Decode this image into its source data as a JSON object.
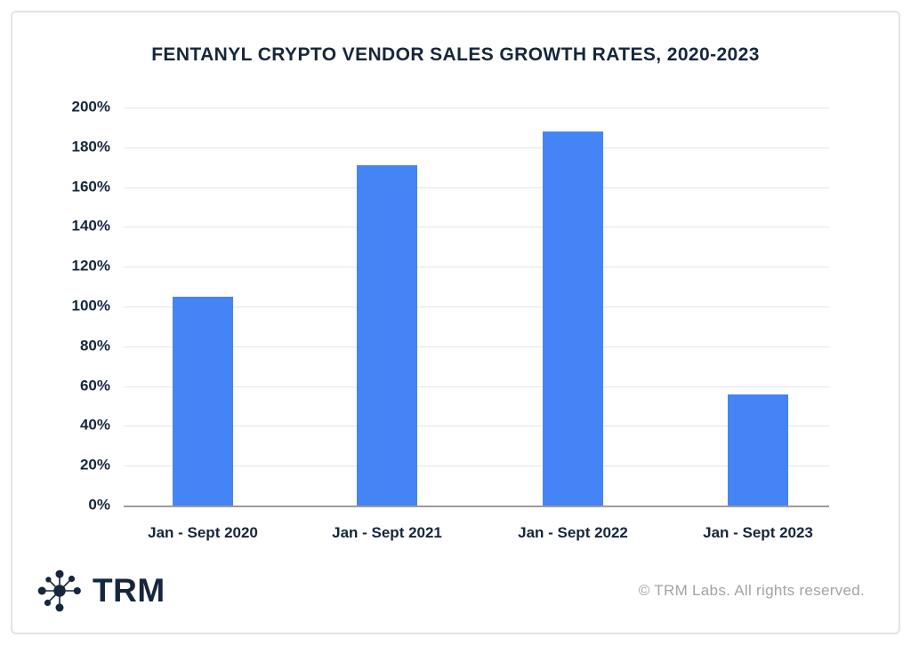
{
  "chart_data": {
    "type": "bar",
    "title": "FENTANYL CRYPTO VENDOR SALES GROWTH RATES, 2020-2023",
    "categories": [
      "Jan - Sept 2020",
      "Jan - Sept 2021",
      "Jan - Sept 2022",
      "Jan - Sept 2023"
    ],
    "values": [
      105,
      171,
      188,
      56
    ],
    "xlabel": "",
    "ylabel": "",
    "ylim": [
      0,
      200
    ],
    "ytick_step": 20,
    "ytick_labels": [
      "0%",
      "20%",
      "40%",
      "60%",
      "80%",
      "100%",
      "120%",
      "140%",
      "160%",
      "180%",
      "200%"
    ],
    "grid": true,
    "legend": null,
    "bar_color": "#4584f4"
  },
  "footer": {
    "logo_icon": "trm-network-icon",
    "logo_text": "TRM",
    "copyright": "© TRM Labs. All rights reserved."
  },
  "colors": {
    "text_dark": "#16263c",
    "bar_blue": "#4584f4",
    "gridline": "#e6e6ea",
    "axis_line": "#9b9ba1",
    "muted_text": "#a2a2a8",
    "frame_border": "#e3e3e6"
  }
}
